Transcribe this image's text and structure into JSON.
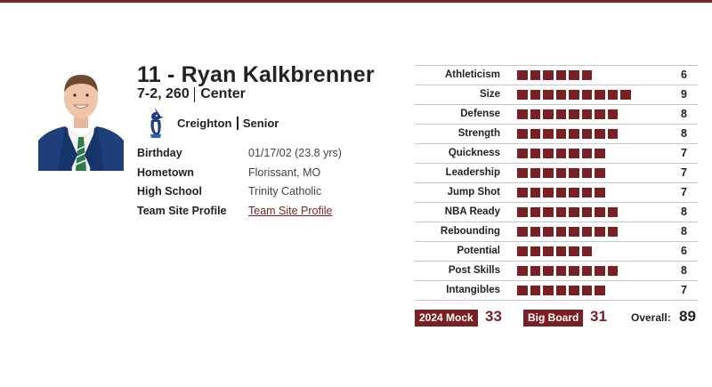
{
  "colors": {
    "accent": "#7a1f24",
    "text": "#222222",
    "rule": "#c8c8c8"
  },
  "player": {
    "name": "11 - Ryan Kalkbrenner",
    "height_weight": "7-2, 260",
    "position": "Center",
    "school": "Creighton",
    "school_logo_icon": "bluejay-mascot-icon",
    "year": "Senior",
    "photo_icon": "player-headshot-image"
  },
  "info": [
    {
      "label": "Birthday",
      "value": "01/17/02 (23.8 yrs)"
    },
    {
      "label": "Hometown",
      "value": "Florissant, MO"
    },
    {
      "label": "High School",
      "value": "Trinity Catholic"
    },
    {
      "label": "Team Site Profile",
      "value": "Team Site Profile"
    }
  ],
  "ratings": [
    {
      "label": "Athleticism",
      "value": 6
    },
    {
      "label": "Size",
      "value": 9
    },
    {
      "label": "Defense",
      "value": 8
    },
    {
      "label": "Strength",
      "value": 8
    },
    {
      "label": "Quickness",
      "value": 7
    },
    {
      "label": "Leadership",
      "value": 7
    },
    {
      "label": "Jump Shot",
      "value": 7
    },
    {
      "label": "NBA Ready",
      "value": 8
    },
    {
      "label": "Rebounding",
      "value": 8
    },
    {
      "label": "Potential",
      "value": 6
    },
    {
      "label": "Post Skills",
      "value": 8
    },
    {
      "label": "Intangibles",
      "value": 7
    }
  ],
  "summary": {
    "mock_label": "2024 Mock",
    "mock_value": "33",
    "board_label": "Big Board",
    "board_value": "31",
    "overall_label": "Overall:",
    "overall_value": "89"
  }
}
